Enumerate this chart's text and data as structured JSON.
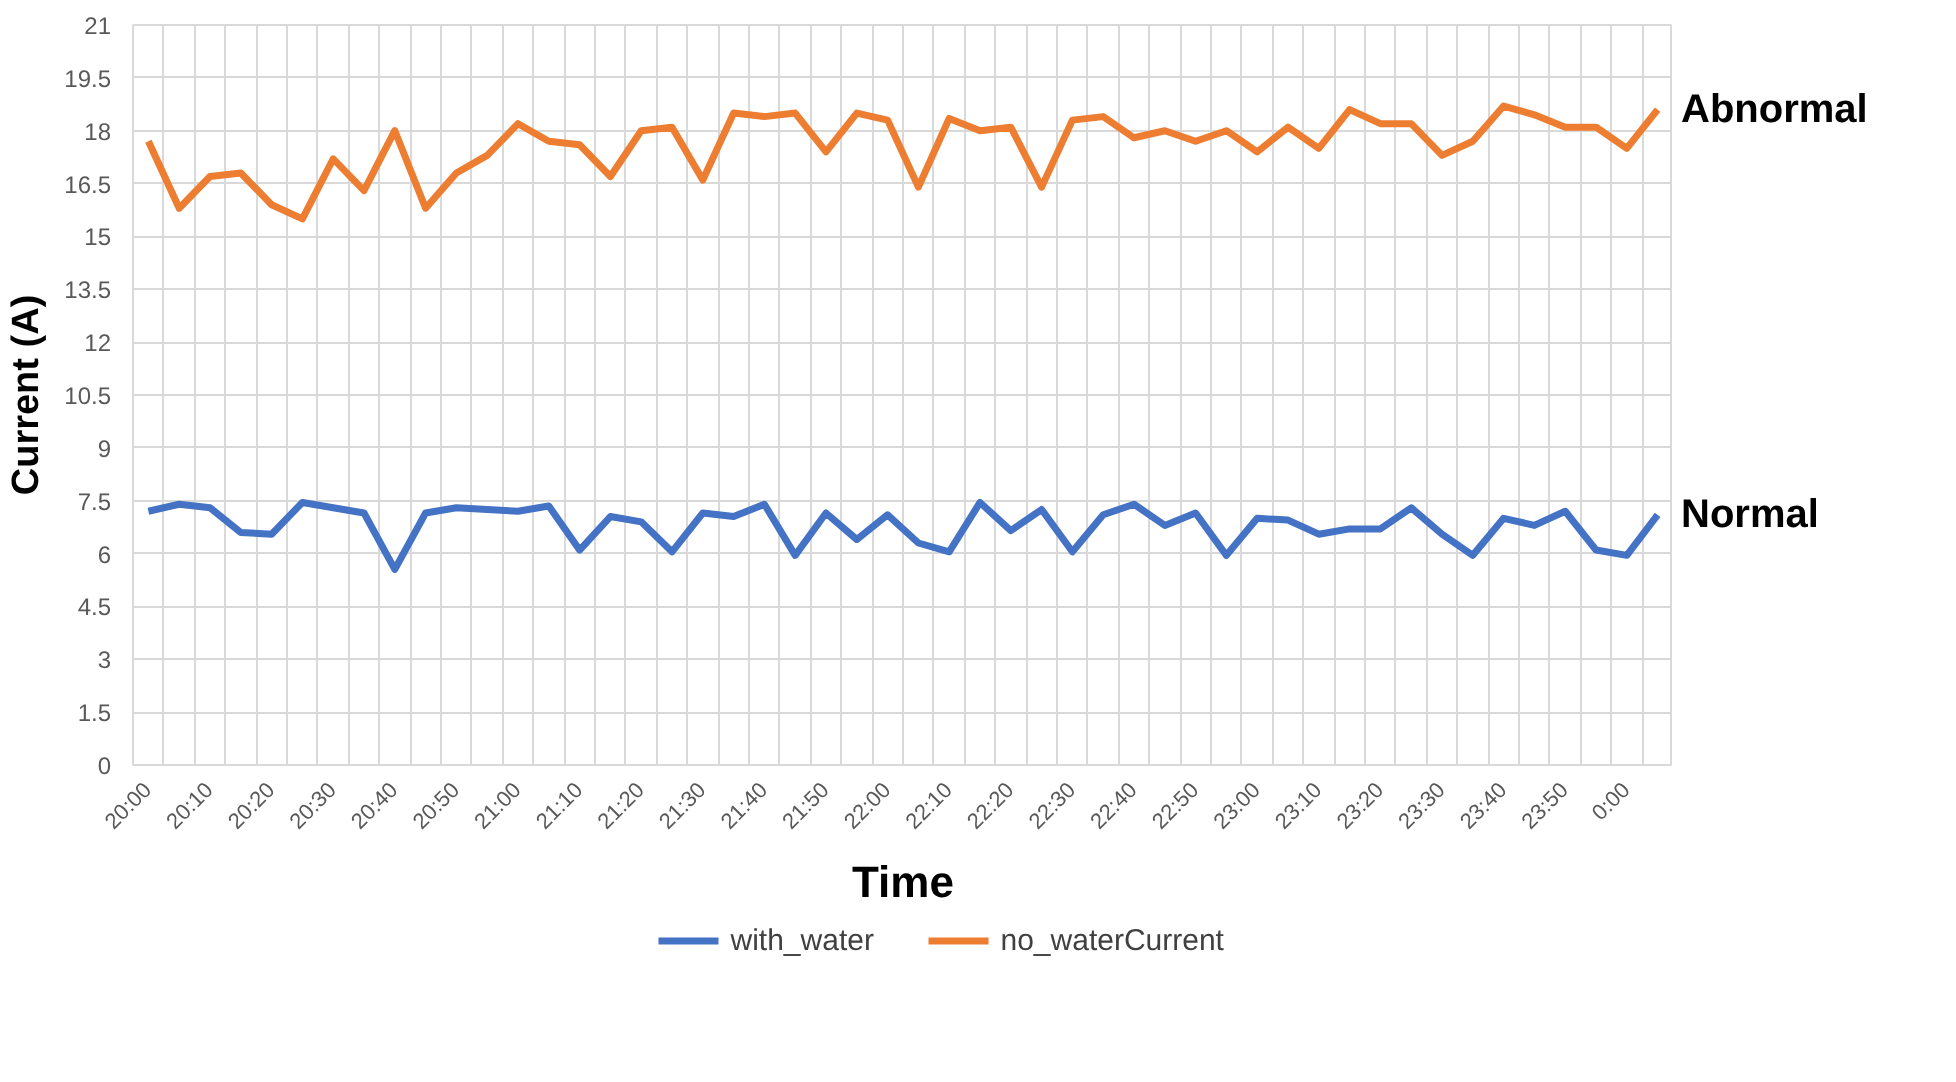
{
  "chart_data": {
    "type": "line",
    "xlabel": "Time",
    "ylabel": "Current (A)",
    "categories": [
      "20:00",
      null,
      "20:10",
      null,
      "20:20",
      null,
      "20:30",
      null,
      "20:40",
      null,
      "20:50",
      null,
      "21:00",
      null,
      "21:10",
      null,
      "21:20",
      null,
      "21:30",
      null,
      "21:40",
      null,
      "21:50",
      null,
      "22:00",
      null,
      "22:10",
      null,
      "22:20",
      null,
      "22:30",
      null,
      "22:40",
      null,
      "22:50",
      null,
      "23:00",
      null,
      "23:10",
      null,
      "23:20",
      null,
      "23:30",
      null,
      "23:40",
      null,
      "23:50",
      null,
      "0:00",
      null
    ],
    "series": [
      {
        "name": "with_water",
        "color": "#4472c4",
        "values": [
          7.2,
          7.4,
          7.3,
          6.6,
          6.55,
          7.45,
          7.3,
          7.15,
          5.55,
          7.15,
          7.3,
          7.25,
          7.2,
          7.35,
          6.1,
          7.05,
          6.9,
          6.05,
          7.15,
          7.05,
          7.4,
          5.95,
          7.15,
          6.4,
          7.1,
          6.3,
          6.05,
          7.45,
          6.65,
          7.25,
          6.05,
          7.1,
          7.4,
          6.8,
          7.15,
          5.95,
          7.0,
          6.95,
          6.55,
          6.7,
          6.7,
          7.3,
          6.55,
          5.95,
          7.0,
          6.8,
          7.2,
          6.1,
          5.95,
          7.1
        ]
      },
      {
        "name": "no_waterCurrent",
        "color": "#ed7d31",
        "values": [
          17.7,
          15.8,
          16.7,
          16.8,
          15.9,
          15.5,
          17.2,
          16.3,
          18.0,
          15.8,
          16.8,
          17.3,
          18.2,
          17.7,
          17.6,
          16.7,
          18.0,
          18.1,
          16.6,
          18.5,
          18.4,
          18.5,
          17.4,
          18.5,
          18.3,
          16.4,
          18.35,
          18.0,
          18.1,
          16.4,
          18.3,
          18.4,
          17.8,
          18.0,
          17.7,
          18.0,
          17.4,
          18.1,
          17.5,
          18.6,
          18.2,
          18.2,
          17.3,
          17.7,
          18.7,
          18.45,
          18.1,
          18.1,
          17.5,
          18.6
        ]
      }
    ],
    "ylim": [
      0,
      21
    ],
    "yticks": [
      0,
      1.5,
      3,
      4.5,
      6,
      7.5,
      9,
      10.5,
      12,
      13.5,
      15,
      16.5,
      18,
      19.5,
      21
    ],
    "grid": true,
    "legend": "bottom",
    "line_style": "solid",
    "annotations": [
      "Abnormal",
      "Normal"
    ]
  }
}
